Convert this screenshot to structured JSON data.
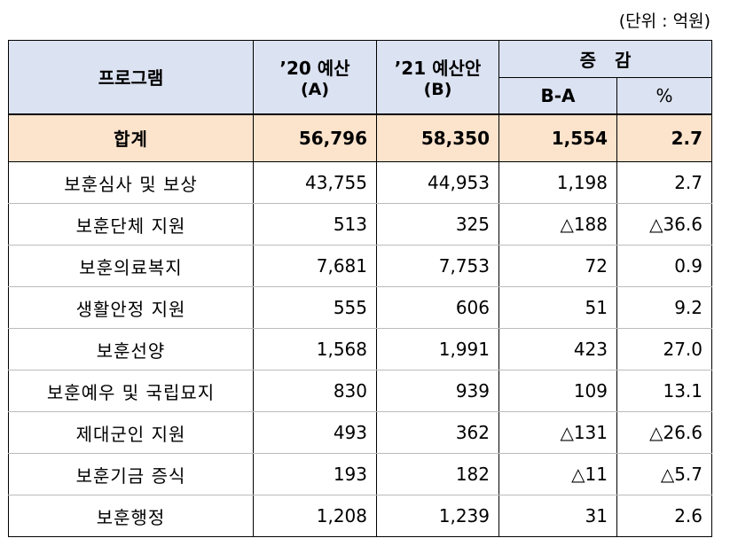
{
  "unit_note": "(단위 : 억원)",
  "header": {
    "program": "프로그램",
    "col_2020": "’20 예산",
    "col_2020_sub": "(A)",
    "col_2021": "’21 예산안",
    "col_2021_sub": "(B)",
    "change": "증   감",
    "change_diff": "B-A",
    "change_pct": "%"
  },
  "total": {
    "name": "합계",
    "a": "56,796",
    "b": "58,350",
    "diff": "1,554",
    "pct": "2.7"
  },
  "rows": [
    {
      "name": "보훈심사 및 보상",
      "a": "43,755",
      "b": "44,953",
      "diff": "1,198",
      "pct": "2.7"
    },
    {
      "name": "보훈단체 지원",
      "a": "513",
      "b": "325",
      "diff": "△188",
      "pct": "△36.6"
    },
    {
      "name": "보훈의료복지",
      "a": "7,681",
      "b": "7,753",
      "diff": "72",
      "pct": "0.9"
    },
    {
      "name": "생활안정 지원",
      "a": "555",
      "b": "606",
      "diff": "51",
      "pct": "9.2"
    },
    {
      "name": "보훈선양",
      "a": "1,568",
      "b": "1,991",
      "diff": "423",
      "pct": "27.0"
    },
    {
      "name": "보훈예우 및 국립묘지",
      "a": "830",
      "b": "939",
      "diff": "109",
      "pct": "13.1"
    },
    {
      "name": "제대군인 지원",
      "a": "493",
      "b": "362",
      "diff": "△131",
      "pct": "△26.6"
    },
    {
      "name": "보훈기금 증식",
      "a": "193",
      "b": "182",
      "diff": "△11",
      "pct": "△5.7"
    },
    {
      "name": "보훈행정",
      "a": "1,208",
      "b": "1,239",
      "diff": "31",
      "pct": "2.6"
    }
  ]
}
